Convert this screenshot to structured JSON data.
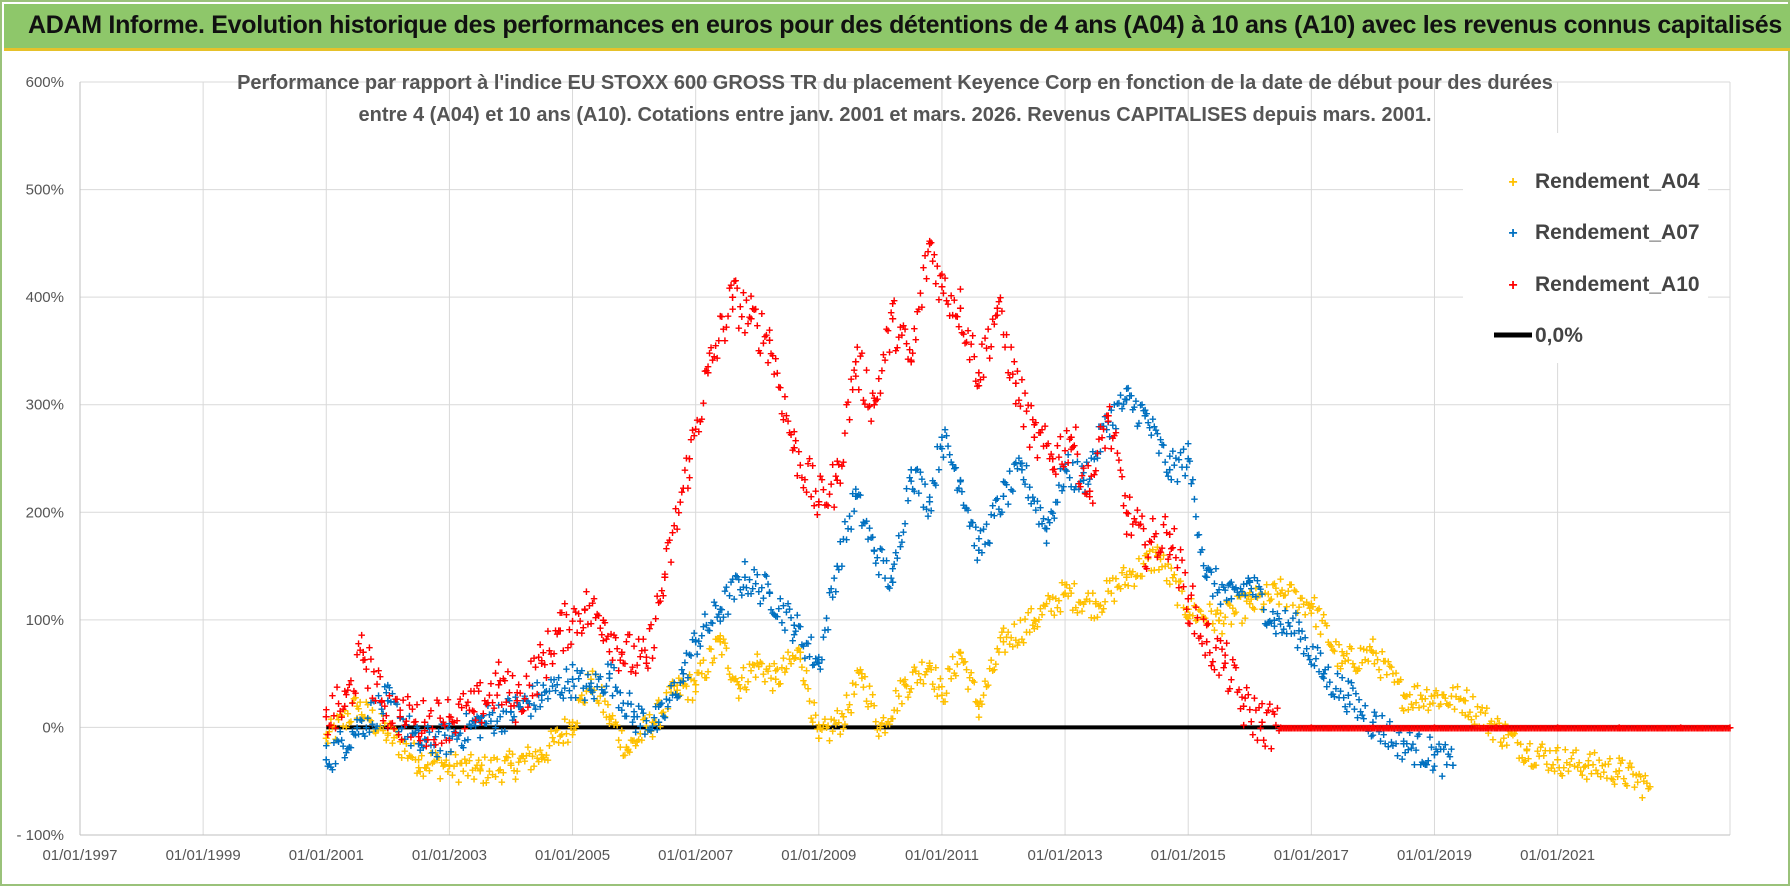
{
  "header": {
    "title": "ADAM Informe. Evolution historique des performances en euros pour des détentions de 4 ans (A04) à 10 ans (A10) avec les revenus connus capitalisés"
  },
  "colors": {
    "header_bg": "#8ec76a",
    "a04": "#ffc000",
    "a07": "#0070c0",
    "a10": "#ff0000",
    "zero_line": "#000000",
    "grid": "#d9d9d9"
  },
  "chart_data": {
    "type": "scatter",
    "title": "Performance par rapport à l'indice EU STOXX 600 GROSS TR  du placement Keyence Corp en fonction de la date de début pour des durées",
    "subtitle": "entre 4 (A04) et 10 ans (A10).  Cotations entre janv. 2001 et mars. 2026.  Revenus CAPITALISES depuis mars. 2001.",
    "xlabel": "",
    "ylabel": "",
    "xlim": [
      1997.0,
      2023.8
    ],
    "ylim": [
      -100,
      600
    ],
    "x_ticks": [
      "01/01/1997",
      "01/01/1999",
      "01/01/2001",
      "01/01/2003",
      "01/01/2005",
      "01/01/2007",
      "01/01/2009",
      "01/01/2011",
      "01/01/2013",
      "01/01/2015",
      "01/01/2017",
      "01/01/2019",
      "01/01/2021"
    ],
    "y_ticks": [
      "600%",
      "500%",
      "400%",
      "300%",
      "200%",
      "100%",
      "0%",
      "- 100%"
    ],
    "y_tick_values": [
      600,
      500,
      400,
      300,
      200,
      100,
      0,
      -100
    ],
    "series": [
      {
        "name": "Rendement_A04",
        "marker": "+",
        "x": [
          2001.0,
          2001.5,
          2002.0,
          2002.5,
          2003.0,
          2003.5,
          2004.0,
          2004.5,
          2005.0,
          2005.3,
          2005.6,
          2005.9,
          2006.3,
          2006.7,
          2007.0,
          2007.4,
          2007.7,
          2008.0,
          2008.3,
          2008.7,
          2009.0,
          2009.4,
          2009.7,
          2010.0,
          2010.4,
          2010.8,
          2011.0,
          2011.3,
          2011.6,
          2012.0,
          2012.5,
          2013.0,
          2013.5,
          2014.0,
          2014.5,
          2015.0,
          2015.5,
          2016.0,
          2016.5,
          2017.0,
          2017.5,
          2018.0,
          2018.5,
          2019.0,
          2019.5,
          2020.0,
          2020.5,
          2021.0,
          2021.5,
          2022.0,
          2022.5
        ],
        "values": [
          -10,
          20,
          -5,
          -30,
          -35,
          -40,
          -35,
          -25,
          5,
          45,
          10,
          -20,
          5,
          35,
          40,
          80,
          40,
          60,
          45,
          70,
          -10,
          10,
          50,
          0,
          40,
          60,
          30,
          70,
          20,
          80,
          100,
          125,
          115,
          140,
          160,
          110,
          100,
          115,
          125,
          115,
          60,
          70,
          30,
          30,
          25,
          0,
          -20,
          -30,
          -35,
          -40,
          -55
        ]
      },
      {
        "name": "Rendement_A07",
        "marker": "+",
        "x": [
          2001.0,
          2001.5,
          2002.0,
          2002.5,
          2003.0,
          2003.5,
          2004.0,
          2004.5,
          2005.0,
          2005.3,
          2005.6,
          2006.0,
          2006.4,
          2006.8,
          2007.0,
          2007.4,
          2007.8,
          2008.2,
          2008.6,
          2009.0,
          2009.3,
          2009.6,
          2009.9,
          2010.2,
          2010.5,
          2010.8,
          2011.0,
          2011.3,
          2011.6,
          2012.0,
          2012.3,
          2012.7,
          2013.0,
          2013.3,
          2013.7,
          2014.0,
          2014.3,
          2014.7,
          2015.0,
          2015.3,
          2015.7,
          2016.0,
          2016.4,
          2016.8,
          2017.2,
          2017.6,
          2018.0,
          2018.5,
          2019.0,
          2019.3
        ],
        "values": [
          -30,
          0,
          25,
          -15,
          -10,
          5,
          15,
          30,
          45,
          35,
          50,
          10,
          5,
          50,
          80,
          110,
          140,
          125,
          95,
          60,
          150,
          215,
          165,
          135,
          240,
          210,
          270,
          230,
          165,
          215,
          240,
          185,
          240,
          230,
          285,
          305,
          290,
          240,
          250,
          140,
          120,
          135,
          100,
          90,
          50,
          30,
          5,
          -15,
          -25,
          -35
        ]
      },
      {
        "name": "Rendement_A10",
        "marker": "+",
        "x": [
          2001.0,
          2001.3,
          2001.6,
          2001.9,
          2002.2,
          2002.6,
          2003.0,
          2003.4,
          2003.8,
          2004.1,
          2004.5,
          2004.8,
          2005.2,
          2005.5,
          2005.8,
          2006.2,
          2006.5,
          2006.9,
          2007.2,
          2007.6,
          2007.9,
          2008.2,
          2008.6,
          2009.0,
          2009.3,
          2009.6,
          2009.9,
          2010.2,
          2010.5,
          2010.8,
          2011.0,
          2011.3,
          2011.6,
          2011.9,
          2012.2,
          2012.5,
          2012.8,
          2013.1,
          2013.4,
          2013.7,
          2014.0,
          2014.3,
          2014.7,
          2015.0,
          2015.3,
          2015.6,
          2015.9,
          2016.2,
          2016.5,
          2017.0,
          2018.0,
          2019.0,
          2020.0,
          2021.0,
          2022.0,
          2023.0,
          2023.8
        ],
        "values": [
          10,
          20,
          70,
          25,
          10,
          5,
          10,
          15,
          40,
          25,
          60,
          90,
          110,
          100,
          70,
          60,
          140,
          250,
          330,
          400,
          380,
          360,
          260,
          210,
          230,
          340,
          300,
          380,
          340,
          450,
          410,
          390,
          330,
          390,
          320,
          270,
          250,
          270,
          220,
          290,
          200,
          170,
          180,
          120,
          80,
          60,
          20,
          5,
          0,
          0,
          0,
          0,
          0,
          0,
          0,
          0,
          0
        ]
      },
      {
        "name": "0,0%",
        "type": "line",
        "x": [
          2001.0,
          2023.8
        ],
        "values": [
          0,
          0
        ]
      }
    ]
  }
}
